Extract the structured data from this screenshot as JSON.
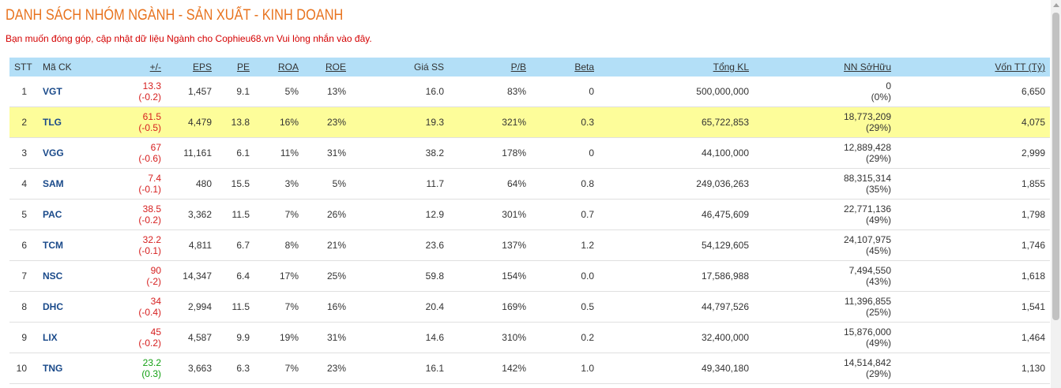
{
  "page": {
    "title": "DANH SÁCH NHÓM NGÀNH - SẢN XUẤT - KINH DOANH",
    "notice": "Bạn muốn đóng góp, cập nhật dữ liệu Ngành cho Cophieu68.vn Vui lòng nhắn vào đây."
  },
  "colors": {
    "title": "#e8731e",
    "notice": "#d40000",
    "header_bg": "#b3dff7",
    "highlight_row": "#fdfd9a",
    "ticker": "#1a4a8a",
    "down": "#d62020",
    "up": "#13a013"
  },
  "table": {
    "headers": {
      "stt": "STT",
      "ticker": "Mã CK",
      "change": "+/-",
      "eps": "EPS",
      "pe": "PE",
      "roa": "ROA",
      "roe": "ROE",
      "book": "Giá SS",
      "pb": "P/B",
      "beta": "Beta",
      "volume": "Tổng KL",
      "foreign": "NN SởHữu",
      "cap": "Vốn TT (Tỷ)"
    },
    "rows": [
      {
        "stt": "1",
        "ticker": "VGT",
        "price": "13.3",
        "change": "(-0.2)",
        "dir": "down",
        "eps": "1,457",
        "pe": "9.1",
        "roa": "5%",
        "roe": "13%",
        "book": "16.0",
        "pb": "83%",
        "beta": "0",
        "volume": "500,000,000",
        "foreign": "0",
        "foreign_pct": "(0%)",
        "cap": "6,650",
        "highlight": false
      },
      {
        "stt": "2",
        "ticker": "TLG",
        "price": "61.5",
        "change": "(-0.5)",
        "dir": "down",
        "eps": "4,479",
        "pe": "13.8",
        "roa": "16%",
        "roe": "23%",
        "book": "19.3",
        "pb": "321%",
        "beta": "0.3",
        "volume": "65,722,853",
        "foreign": "18,773,209",
        "foreign_pct": "(29%)",
        "cap": "4,075",
        "highlight": true
      },
      {
        "stt": "3",
        "ticker": "VGG",
        "price": "67",
        "change": "(-0.6)",
        "dir": "down",
        "eps": "11,161",
        "pe": "6.1",
        "roa": "11%",
        "roe": "31%",
        "book": "38.2",
        "pb": "178%",
        "beta": "0",
        "volume": "44,100,000",
        "foreign": "12,889,428",
        "foreign_pct": "(29%)",
        "cap": "2,999",
        "highlight": false
      },
      {
        "stt": "4",
        "ticker": "SAM",
        "price": "7.4",
        "change": "(-0.1)",
        "dir": "down",
        "eps": "480",
        "pe": "15.5",
        "roa": "3%",
        "roe": "5%",
        "book": "11.7",
        "pb": "64%",
        "beta": "0.8",
        "volume": "249,036,263",
        "foreign": "88,315,314",
        "foreign_pct": "(35%)",
        "cap": "1,855",
        "highlight": false
      },
      {
        "stt": "5",
        "ticker": "PAC",
        "price": "38.5",
        "change": "(-0.2)",
        "dir": "down",
        "eps": "3,362",
        "pe": "11.5",
        "roa": "7%",
        "roe": "26%",
        "book": "12.9",
        "pb": "301%",
        "beta": "0.7",
        "volume": "46,475,609",
        "foreign": "22,771,136",
        "foreign_pct": "(49%)",
        "cap": "1,798",
        "highlight": false
      },
      {
        "stt": "6",
        "ticker": "TCM",
        "price": "32.2",
        "change": "(-0.1)",
        "dir": "down",
        "eps": "4,811",
        "pe": "6.7",
        "roa": "8%",
        "roe": "21%",
        "book": "23.6",
        "pb": "137%",
        "beta": "1.2",
        "volume": "54,129,605",
        "foreign": "24,107,975",
        "foreign_pct": "(45%)",
        "cap": "1,746",
        "highlight": false
      },
      {
        "stt": "7",
        "ticker": "NSC",
        "price": "90",
        "change": "(-2)",
        "dir": "down",
        "eps": "14,347",
        "pe": "6.4",
        "roa": "17%",
        "roe": "25%",
        "book": "59.8",
        "pb": "154%",
        "beta": "0.0",
        "volume": "17,586,988",
        "foreign": "7,494,550",
        "foreign_pct": "(43%)",
        "cap": "1,618",
        "highlight": false
      },
      {
        "stt": "8",
        "ticker": "DHC",
        "price": "34",
        "change": "(-0.4)",
        "dir": "down",
        "eps": "2,994",
        "pe": "11.5",
        "roa": "7%",
        "roe": "16%",
        "book": "20.4",
        "pb": "169%",
        "beta": "0.5",
        "volume": "44,797,526",
        "foreign": "11,396,855",
        "foreign_pct": "(25%)",
        "cap": "1,541",
        "highlight": false
      },
      {
        "stt": "9",
        "ticker": "LIX",
        "price": "45",
        "change": "(-0.2)",
        "dir": "down",
        "eps": "4,587",
        "pe": "9.9",
        "roa": "19%",
        "roe": "31%",
        "book": "14.6",
        "pb": "310%",
        "beta": "0.2",
        "volume": "32,400,000",
        "foreign": "15,876,000",
        "foreign_pct": "(49%)",
        "cap": "1,464",
        "highlight": false
      },
      {
        "stt": "10",
        "ticker": "TNG",
        "price": "23.2",
        "change": "(0.3)",
        "dir": "up",
        "eps": "3,663",
        "pe": "6.3",
        "roa": "7%",
        "roe": "23%",
        "book": "16.1",
        "pb": "142%",
        "beta": "1.0",
        "volume": "49,340,180",
        "foreign": "14,514,842",
        "foreign_pct": "(29%)",
        "cap": "1,130",
        "highlight": false
      }
    ]
  }
}
